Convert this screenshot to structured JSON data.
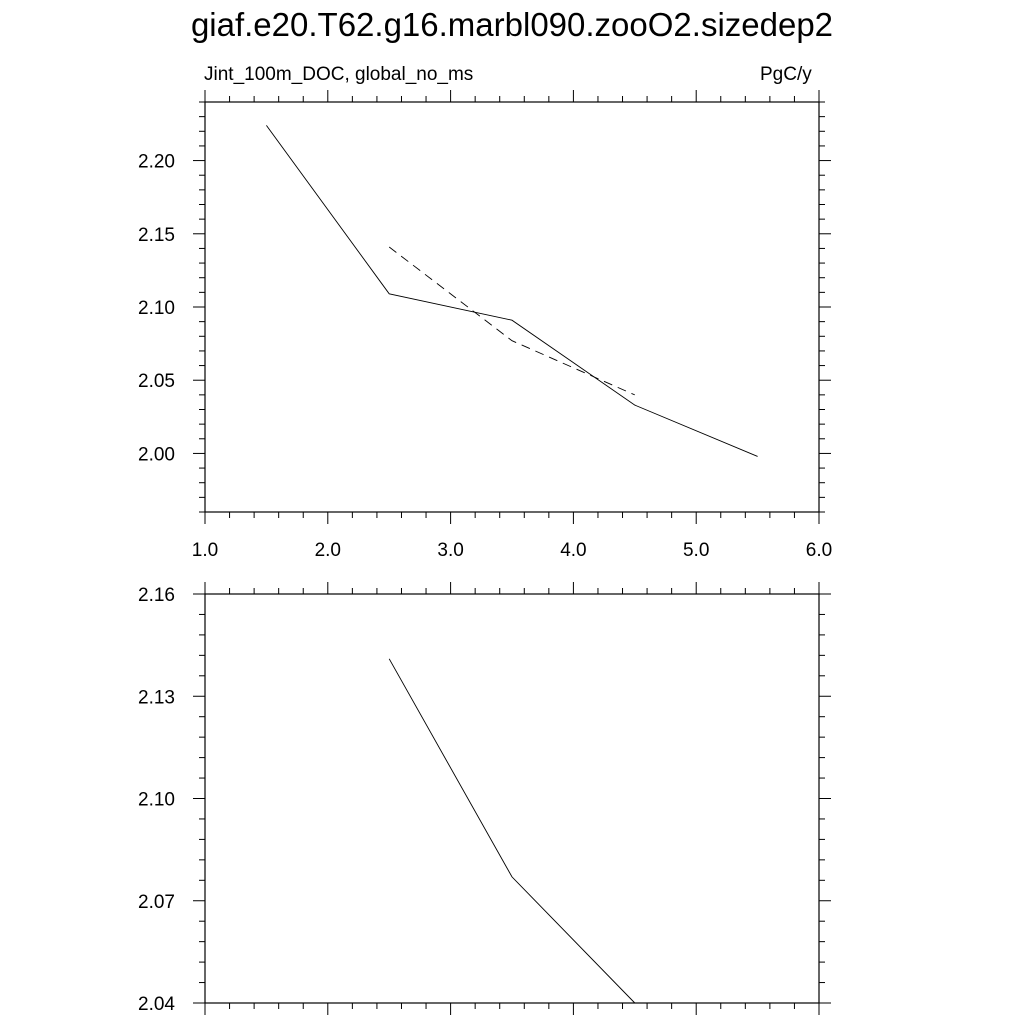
{
  "title": "giaf.e20.T62.g16.marbl090.zooO2.sizedep2",
  "left_label": "Jint_100m_DOC, global_no_ms",
  "right_label": "PgC/y",
  "colors": {
    "line": "#000000",
    "frame": "#000000",
    "background": "#ffffff"
  },
  "chart_data": [
    {
      "type": "line",
      "title": "",
      "xlabel": "",
      "ylabel": "",
      "xlim": [
        1.0,
        6.0
      ],
      "ylim": [
        1.96,
        2.24
      ],
      "xticks": [
        1.0,
        2.0,
        3.0,
        4.0,
        5.0,
        6.0
      ],
      "xtick_labels": [
        "1.0",
        "2.0",
        "3.0",
        "4.0",
        "5.0",
        "6.0"
      ],
      "yticks": [
        2.0,
        2.05,
        2.1,
        2.15,
        2.2
      ],
      "ytick_labels": [
        "2.00",
        "2.05",
        "2.10",
        "2.15",
        "2.20"
      ],
      "grid": false,
      "series": [
        {
          "style": "solid",
          "x": [
            1.5,
            2.5,
            3.5,
            4.5,
            5.5
          ],
          "y": [
            2.224,
            2.109,
            2.091,
            2.033,
            1.998
          ]
        },
        {
          "style": "dashed",
          "x": [
            2.5,
            3.5,
            4.5
          ],
          "y": [
            2.141,
            2.077,
            2.04
          ]
        }
      ]
    },
    {
      "type": "line",
      "title": "",
      "xlabel": "",
      "ylabel": "",
      "xlim": [
        1.0,
        6.0
      ],
      "ylim": [
        2.04,
        2.16
      ],
      "xticks": [
        1.0,
        2.0,
        3.0,
        4.0,
        5.0,
        6.0
      ],
      "xtick_labels": [],
      "yticks": [
        2.04,
        2.07,
        2.1,
        2.13,
        2.16
      ],
      "ytick_labels": [
        "2.04",
        "2.07",
        "2.10",
        "2.13",
        "2.16"
      ],
      "grid": false,
      "series": [
        {
          "style": "solid",
          "x": [
            2.5,
            3.5,
            4.5
          ],
          "y": [
            2.141,
            2.077,
            2.04
          ]
        }
      ]
    }
  ]
}
